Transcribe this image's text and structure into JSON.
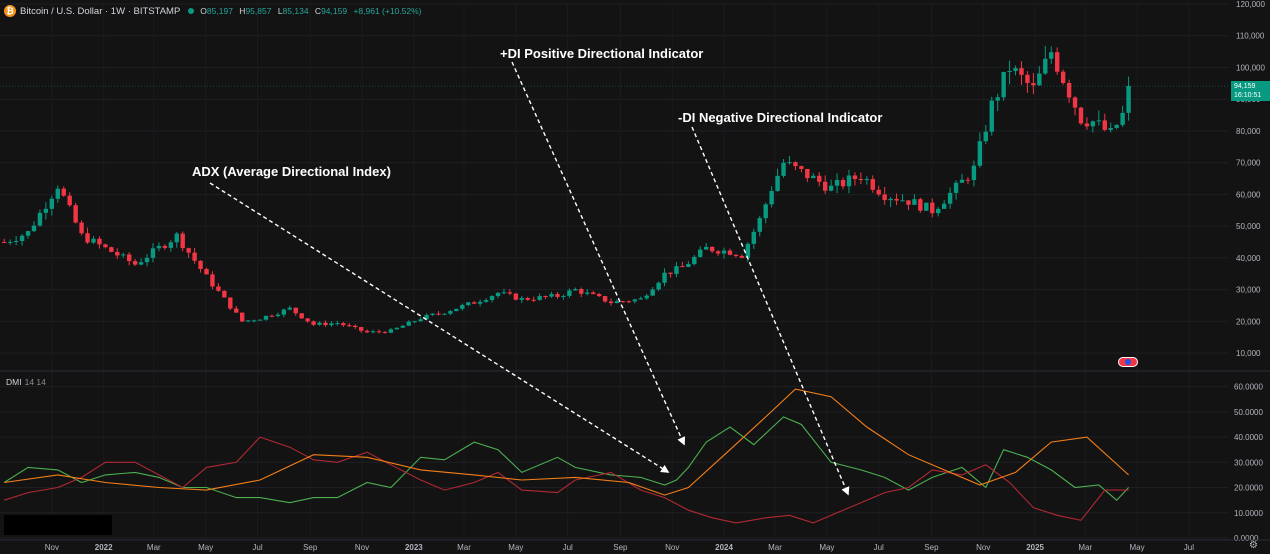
{
  "header": {
    "symbol_title": "Bitcoin / U.S. Dollar · 1W · BITSTAMP",
    "logo_glyph": "₿",
    "open_label": "O",
    "open": "85,197",
    "high_label": "H",
    "high": "95,857",
    "low_label": "L",
    "low": "85,134",
    "close_label": "C",
    "close": "94,159",
    "change": "+8,961 (+10.52%)"
  },
  "last_price": {
    "price": "94,159",
    "countdown": "16:10:51"
  },
  "indicator": {
    "name": "DMI",
    "params": "14 14"
  },
  "annotations": {
    "adx": "ADX (Average Directional Index)",
    "plus_di": "+DI Positive Directional Indicator",
    "minus_di": "-DI Negative Directional Indicator"
  },
  "colors": {
    "background": "#131313",
    "up_candle": "#089981",
    "down_candle": "#f23645",
    "plus_di": "#4caf50",
    "minus_di": "#b22833",
    "adx": "#f57f17",
    "annotation": "#ffffff"
  },
  "chart_data": [
    {
      "type": "candlestick",
      "title": "Bitcoin / U.S. Dollar · 1W · BITSTAMP",
      "ylim": [
        5000,
        120000
      ],
      "y_ticks": [
        "10,000",
        "20,000",
        "30,000",
        "40,000",
        "50,000",
        "60,000",
        "70,000",
        "80,000",
        "90,000",
        "100,000",
        "110,000",
        "120,000"
      ],
      "y_tick_values": [
        10000,
        20000,
        30000,
        40000,
        50000,
        60000,
        70000,
        80000,
        90000,
        100000,
        110000,
        120000
      ],
      "x_ticks": [
        "Nov",
        "2022",
        "Mar",
        "May",
        "Jul",
        "Sep",
        "Nov",
        "2023",
        "Mar",
        "May",
        "Jul",
        "Sep",
        "Nov",
        "2024",
        "Mar",
        "May",
        "Jul",
        "Sep",
        "Nov",
        "2025",
        "Mar",
        "May",
        "Jul"
      ],
      "x_tick_dates": [
        "2021-11-01",
        "2022-01-01",
        "2022-03-01",
        "2022-05-01",
        "2022-07-01",
        "2022-09-01",
        "2022-11-01",
        "2023-01-01",
        "2023-03-01",
        "2023-05-01",
        "2023-07-01",
        "2023-09-01",
        "2023-11-01",
        "2024-01-01",
        "2024-03-01",
        "2024-05-01",
        "2024-07-01",
        "2024-09-01",
        "2024-11-01",
        "2025-01-01",
        "2025-03-01",
        "2025-05-01",
        "2025-07-01"
      ],
      "date_range": [
        "2021-09-01",
        "2025-08-16"
      ],
      "close_series": {
        "dates": [
          "2021-09-06",
          "2021-10-04",
          "2021-11-08",
          "2021-12-06",
          "2022-01-03",
          "2022-02-07",
          "2022-03-28",
          "2022-05-02",
          "2022-06-13",
          "2022-07-04",
          "2022-08-08",
          "2022-09-05",
          "2022-10-03",
          "2022-11-07",
          "2022-12-05",
          "2023-01-09",
          "2023-02-06",
          "2023-03-13",
          "2023-04-10",
          "2023-05-08",
          "2023-06-19",
          "2023-07-10",
          "2023-08-21",
          "2023-09-25",
          "2023-10-23",
          "2023-11-13",
          "2023-12-11",
          "2024-01-08",
          "2024-01-22",
          "2024-02-12",
          "2024-02-26",
          "2024-03-11",
          "2024-04-08",
          "2024-05-06",
          "2024-06-10",
          "2024-07-08",
          "2024-08-05",
          "2024-09-02",
          "2024-09-30",
          "2024-10-21",
          "2024-11-11",
          "2024-12-02",
          "2024-12-30",
          "2025-01-20",
          "2025-02-24",
          "2025-03-10",
          "2025-03-31",
          "2025-04-14",
          "2025-04-21"
        ],
        "values": [
          45000,
          48000,
          63000,
          47000,
          43000,
          38000,
          47000,
          34000,
          20000,
          21000,
          24000,
          19000,
          19500,
          16500,
          17000,
          21000,
          23000,
          26000,
          29000,
          27000,
          28000,
          30000,
          26000,
          27000,
          35000,
          37000,
          43000,
          42000,
          41000,
          52000,
          62000,
          70000,
          66000,
          62000,
          66000,
          60000,
          58000,
          55000,
          62000,
          68000,
          88000,
          100000,
          93000,
          105000,
          84000,
          83000,
          79000,
          85000,
          94159
        ]
      },
      "last_price": 94159
    },
    {
      "type": "line",
      "title": "DMI 14 14",
      "ylim": [
        0,
        65
      ],
      "y_ticks": [
        "0.0000",
        "10.0000",
        "20.0000",
        "30.0000",
        "40.0000",
        "50.0000",
        "60.0000"
      ],
      "y_tick_values": [
        0,
        10,
        20,
        30,
        40,
        50,
        60
      ],
      "series": [
        {
          "name": "+DI",
          "color": "#4caf50",
          "dates": [
            "2021-09-06",
            "2021-10-04",
            "2021-11-08",
            "2021-12-06",
            "2022-01-03",
            "2022-02-07",
            "2022-03-07",
            "2022-04-04",
            "2022-05-02",
            "2022-06-06",
            "2022-07-04",
            "2022-08-08",
            "2022-09-05",
            "2022-10-03",
            "2022-11-07",
            "2022-12-05",
            "2023-01-09",
            "2023-02-06",
            "2023-03-13",
            "2023-04-10",
            "2023-05-08",
            "2023-06-19",
            "2023-07-10",
            "2023-08-21",
            "2023-09-25",
            "2023-10-23",
            "2023-11-06",
            "2023-11-20",
            "2023-12-11",
            "2024-01-08",
            "2024-02-05",
            "2024-03-11",
            "2024-04-01",
            "2024-05-06",
            "2024-06-10",
            "2024-07-08",
            "2024-08-05",
            "2024-09-02",
            "2024-10-07",
            "2024-11-04",
            "2024-11-25",
            "2024-12-23",
            "2025-01-20",
            "2025-02-17",
            "2025-03-17",
            "2025-04-07",
            "2025-04-21"
          ],
          "values": [
            22,
            28,
            27,
            22,
            25,
            26,
            24,
            20,
            20,
            16,
            16,
            14,
            16,
            16,
            22,
            20,
            32,
            31,
            38,
            35,
            26,
            32,
            28,
            25,
            24,
            21,
            23,
            28,
            38,
            44,
            37,
            48,
            45,
            30,
            27,
            24,
            19,
            24,
            28,
            20,
            35,
            32,
            27,
            20,
            21,
            15,
            20
          ]
        },
        {
          "name": "-DI",
          "color": "#b22833",
          "dates": [
            "2021-09-06",
            "2021-10-04",
            "2021-11-08",
            "2021-12-06",
            "2022-01-03",
            "2022-02-07",
            "2022-03-07",
            "2022-04-04",
            "2022-05-02",
            "2022-06-06",
            "2022-07-04",
            "2022-08-08",
            "2022-09-05",
            "2022-10-03",
            "2022-11-07",
            "2022-12-05",
            "2023-01-09",
            "2023-02-06",
            "2023-03-13",
            "2023-04-10",
            "2023-05-08",
            "2023-06-19",
            "2023-07-10",
            "2023-08-21",
            "2023-09-25",
            "2023-10-23",
            "2023-11-20",
            "2023-12-18",
            "2024-01-15",
            "2024-02-19",
            "2024-03-18",
            "2024-04-15",
            "2024-05-13",
            "2024-06-10",
            "2024-07-08",
            "2024-08-05",
            "2024-09-02",
            "2024-10-07",
            "2024-11-04",
            "2024-12-02",
            "2024-12-30",
            "2025-01-27",
            "2025-02-24",
            "2025-03-24",
            "2025-04-21"
          ],
          "values": [
            15,
            18,
            20,
            24,
            30,
            30,
            25,
            20,
            28,
            30,
            40,
            36,
            31,
            30,
            34,
            29,
            23,
            19,
            22,
            26,
            19,
            18,
            23,
            26,
            19,
            16,
            11,
            8,
            6,
            8,
            9,
            6,
            10,
            14,
            18,
            20,
            27,
            25,
            29,
            22,
            12,
            9,
            7,
            19,
            19
          ]
        },
        {
          "name": "ADX",
          "color": "#f57f17",
          "dates": [
            "2021-09-06",
            "2021-11-08",
            "2022-01-03",
            "2022-03-07",
            "2022-05-02",
            "2022-07-04",
            "2022-09-05",
            "2022-11-07",
            "2023-01-09",
            "2023-03-13",
            "2023-05-08",
            "2023-07-10",
            "2023-09-11",
            "2023-10-23",
            "2023-11-20",
            "2024-01-08",
            "2024-02-19",
            "2024-03-25",
            "2024-05-06",
            "2024-06-17",
            "2024-08-05",
            "2024-09-16",
            "2024-10-28",
            "2024-12-09",
            "2025-01-20",
            "2025-03-03",
            "2025-04-21"
          ],
          "values": [
            22,
            25,
            22,
            20,
            19,
            23,
            33,
            32,
            27,
            25,
            23,
            24,
            22,
            17,
            20,
            35,
            48,
            59,
            56,
            44,
            33,
            27,
            21,
            26,
            38,
            40,
            25
          ]
        }
      ]
    }
  ]
}
